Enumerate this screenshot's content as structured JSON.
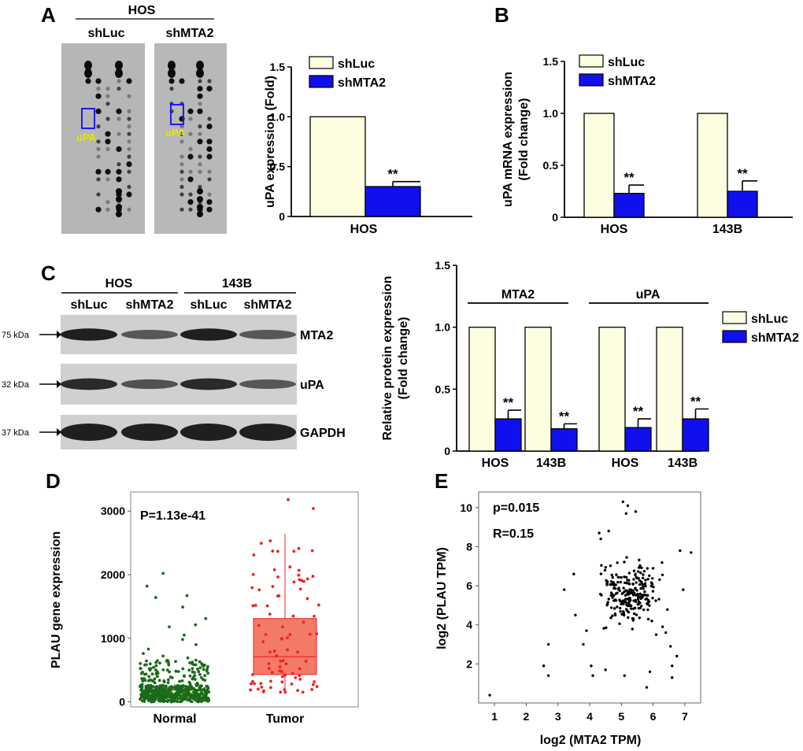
{
  "panels": {
    "A": {
      "letter": "A",
      "array_title": "HOS",
      "array_columns": [
        "shLuc",
        "shMTA2"
      ],
      "spot_label": "uPA",
      "highlight_color": "#1a1aff",
      "spot_label_color": "#e6e600"
    },
    "B": {
      "letter": "B"
    },
    "C": {
      "letter": "C",
      "blot_groups": [
        "HOS",
        "143B"
      ],
      "blot_lanes": [
        "shLuc",
        "shMTA2",
        "shLuc",
        "shMTA2"
      ],
      "blot_bands": [
        {
          "marker": "75 kDa",
          "protein": "MTA2"
        },
        {
          "marker": "32 kDa",
          "protein": "uPA"
        },
        {
          "marker": "37 kDa",
          "protein": "GAPDH"
        }
      ]
    },
    "D": {
      "letter": "D"
    },
    "E": {
      "letter": "E"
    }
  },
  "colors": {
    "shLuc": "#fdfde0",
    "shMTA2": "#1010ee",
    "normal": "#1a6b1a",
    "normal_box": "#d8f08a",
    "tumor": "#ee2222",
    "tumor_box": "#f47a68",
    "scatter": "#000000"
  },
  "chart_data": [
    {
      "id": "A-bar",
      "type": "bar",
      "title": "",
      "ylabel": "uPA expression (Fold)",
      "xlabel": "",
      "ylim": [
        0,
        1.5
      ],
      "yticks": [
        "0",
        "0.5",
        "1.0",
        "1.5"
      ],
      "categories": [
        "HOS"
      ],
      "series": [
        {
          "name": "shLuc",
          "values": [
            1.0
          ],
          "errors": [
            0
          ]
        },
        {
          "name": "shMTA2",
          "values": [
            0.3
          ],
          "errors": [
            0.05
          ]
        }
      ],
      "annotations": [
        "**"
      ],
      "legend": [
        "shLuc",
        "shMTA2"
      ]
    },
    {
      "id": "B-bar",
      "type": "bar",
      "ylabel": "uPA mRNA expression",
      "ylabel2": "(Fold change)",
      "ylim": [
        0,
        1.5
      ],
      "yticks": [
        "0",
        "0.5",
        "1.0",
        "1.5"
      ],
      "categories": [
        "HOS",
        "143B"
      ],
      "series": [
        {
          "name": "shLuc",
          "values": [
            1.0,
            1.0
          ],
          "errors": [
            0,
            0
          ]
        },
        {
          "name": "shMTA2",
          "values": [
            0.23,
            0.25
          ],
          "errors": [
            0.08,
            0.1
          ]
        }
      ],
      "annotations": [
        "**",
        "**"
      ],
      "legend": [
        "shLuc",
        "shMTA2"
      ]
    },
    {
      "id": "C-bar",
      "type": "bar",
      "ylabel": "Relative protein expression",
      "ylabel2": "(Fold change)",
      "ylim": [
        0,
        1.5
      ],
      "yticks": [
        "0",
        "0.5",
        "1.0",
        "1.5"
      ],
      "groups": [
        "MTA2",
        "uPA"
      ],
      "categories": [
        "HOS",
        "143B",
        "HOS",
        "143B"
      ],
      "series": [
        {
          "name": "shLuc",
          "values": [
            1.0,
            1.0,
            1.0,
            1.0
          ],
          "errors": [
            0,
            0,
            0,
            0
          ]
        },
        {
          "name": "shMTA2",
          "values": [
            0.26,
            0.18,
            0.19,
            0.26
          ],
          "errors": [
            0.07,
            0.04,
            0.07,
            0.08
          ]
        }
      ],
      "annotations": [
        "**",
        "**",
        "**",
        "**"
      ],
      "legend": [
        "shLuc",
        "shMTA2"
      ]
    },
    {
      "id": "D-box",
      "type": "scatter",
      "ylabel": "PLAU gene expression",
      "annotation": "P=1.13e-41",
      "categories": [
        "Normal",
        "Tumor"
      ],
      "ylim": [
        -80,
        3300
      ],
      "yticks": [
        "0",
        "1000",
        "2000",
        "3000"
      ],
      "boxes": [
        {
          "name": "Normal",
          "q1": 60,
          "median": 110,
          "q3": 190,
          "whisker_low": 0,
          "whisker_high": 280
        },
        {
          "name": "Tumor",
          "q1": 430,
          "median": 710,
          "q3": 1310,
          "whisker_low": 130,
          "whisker_high": 2640
        }
      ],
      "outliers": {
        "Normal": [
          2020,
          1820,
          1670,
          1640,
          1490,
          1310,
          1210,
          1180,
          1050,
          980,
          900,
          830,
          760,
          720,
          690,
          650,
          610,
          580,
          540,
          520,
          500,
          470,
          450,
          430,
          410,
          400,
          380,
          360
        ],
        "Tumor": [
          3180,
          3040
        ]
      }
    },
    {
      "id": "E-scatter",
      "type": "scatter",
      "xlabel": "log2 (MTA2 TPM)",
      "ylabel": "log2 (PLAU TPM)",
      "annotations": [
        "p=0.015",
        "R=0.15"
      ],
      "xlim": [
        0.5,
        7.5
      ],
      "ylim": [
        0,
        10.8
      ],
      "xticks": [
        "1",
        "2",
        "3",
        "4",
        "5",
        "6",
        "7"
      ],
      "yticks": [
        "2",
        "4",
        "6",
        "8",
        "10"
      ],
      "points": [
        [
          0.85,
          0.4
        ],
        [
          2.55,
          1.9
        ],
        [
          2.7,
          1.4
        ],
        [
          2.7,
          3.0
        ],
        [
          3.2,
          5.8
        ],
        [
          3.5,
          6.6
        ],
        [
          3.55,
          4.5
        ],
        [
          5.05,
          10.3
        ],
        [
          5.2,
          10.1
        ],
        [
          5.15,
          9.7
        ],
        [
          5.45,
          9.8
        ],
        [
          4.3,
          8.7
        ],
        [
          4.35,
          8.4
        ],
        [
          4.6,
          8.8
        ],
        [
          6.85,
          7.8
        ],
        [
          7.2,
          7.7
        ],
        [
          6.95,
          5.8
        ],
        [
          6.75,
          2.4
        ],
        [
          6.6,
          1.9
        ],
        [
          6.6,
          1.3
        ],
        [
          6.55,
          2.9
        ],
        [
          6.4,
          3.6
        ],
        [
          6.3,
          3.9
        ],
        [
          6.1,
          3.5
        ],
        [
          4.1,
          1.4
        ],
        [
          4.05,
          1.9
        ],
        [
          4.5,
          1.7
        ],
        [
          5.1,
          1.4
        ],
        [
          5.8,
          0.8
        ],
        [
          5.9,
          1.6
        ],
        [
          3.8,
          3.0
        ],
        [
          3.9,
          3.7
        ]
      ]
    }
  ]
}
